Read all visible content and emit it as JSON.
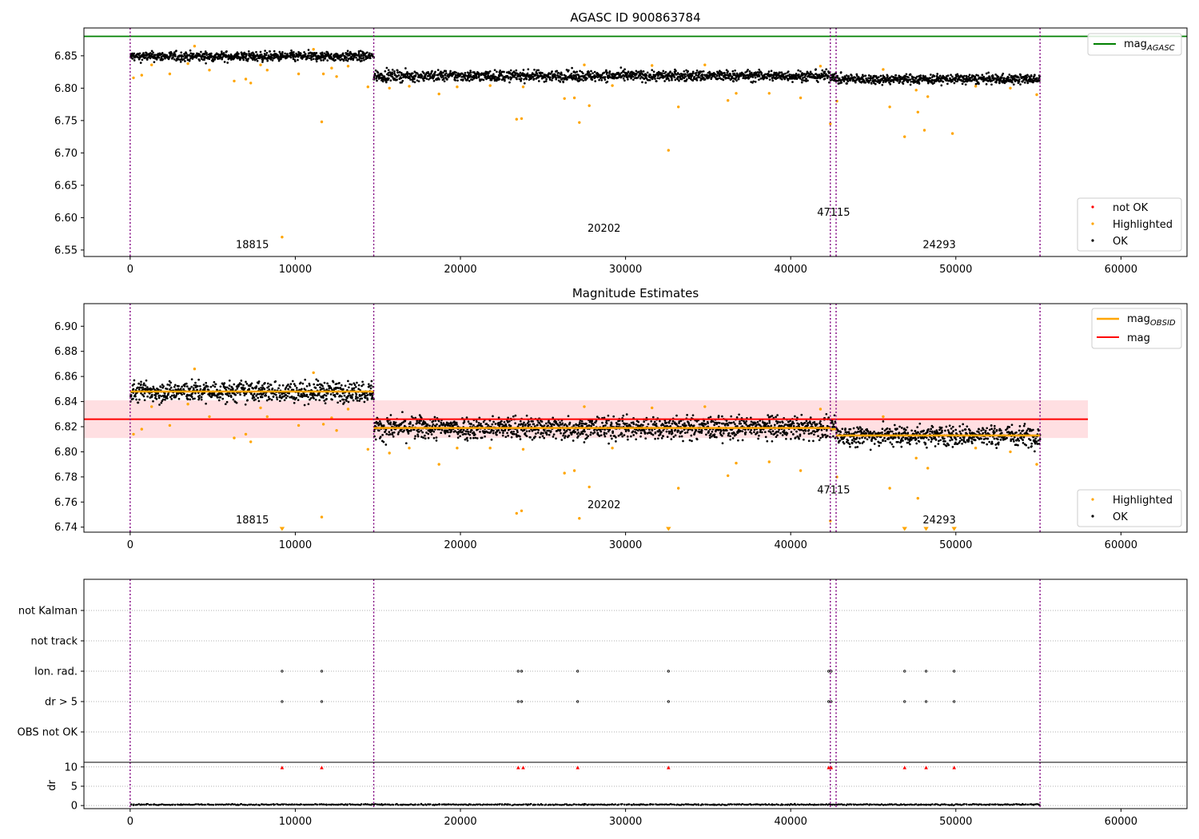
{
  "chart_data": [
    {
      "type": "scatter",
      "title": "AGASC ID 900863784",
      "xlim": [
        -2800,
        64000
      ],
      "ylim": [
        6.54,
        6.893
      ],
      "xticks": [
        0,
        10000,
        20000,
        30000,
        40000,
        50000,
        60000
      ],
      "yticks": [
        6.55,
        6.6,
        6.65,
        6.7,
        6.75,
        6.8,
        6.85
      ],
      "ytick_labels": [
        "6.55",
        "6.60",
        "6.65",
        "6.70",
        "6.75",
        "6.80",
        "6.85"
      ],
      "colors": {
        "ok": "#000000",
        "highlighted": "#ffa500",
        "not_ok": "#ff0000",
        "mag_agasc": "#008000",
        "obsid_boundary": "#800080"
      },
      "reference_line": {
        "name": "mag",
        "subscript": "AGASC",
        "y": 6.88
      },
      "obsid_boundaries": [
        0,
        14750,
        42400,
        42750,
        55100
      ],
      "obsid_labels": [
        {
          "text": "18815",
          "x": 7400,
          "y": 6.553
        },
        {
          "text": "20202",
          "x": 28700,
          "y": 6.578
        },
        {
          "text": "47115",
          "x": 42600,
          "y": 6.603
        },
        {
          "text": "24293",
          "x": 49000,
          "y": 6.553
        }
      ],
      "ok_bands": [
        {
          "x": [
            0,
            14750
          ],
          "center": 6.849,
          "spread": 0.008
        },
        {
          "x": [
            14750,
            42400
          ],
          "center": 6.819,
          "spread": 0.009
        },
        {
          "x": [
            42400,
            42750
          ],
          "center": 6.818,
          "spread": 0.008
        },
        {
          "x": [
            42750,
            55100
          ],
          "center": 6.814,
          "spread": 0.008
        }
      ],
      "highlighted": [
        [
          200,
          6.816
        ],
        [
          700,
          6.82
        ],
        [
          1300,
          6.836
        ],
        [
          2400,
          6.822
        ],
        [
          3500,
          6.838
        ],
        [
          3900,
          6.865
        ],
        [
          4800,
          6.828
        ],
        [
          6300,
          6.811
        ],
        [
          7000,
          6.814
        ],
        [
          7300,
          6.808
        ],
        [
          7900,
          6.836
        ],
        [
          8300,
          6.828
        ],
        [
          9200,
          6.57
        ],
        [
          10200,
          6.822
        ],
        [
          11100,
          6.86
        ],
        [
          11600,
          6.748
        ],
        [
          11700,
          6.822
        ],
        [
          12200,
          6.831
        ],
        [
          12500,
          6.818
        ],
        [
          13200,
          6.834
        ],
        [
          14400,
          6.802
        ],
        [
          15700,
          6.8
        ],
        [
          16900,
          6.803
        ],
        [
          18700,
          6.791
        ],
        [
          19800,
          6.802
        ],
        [
          21800,
          6.804
        ],
        [
          23400,
          6.752
        ],
        [
          23700,
          6.753
        ],
        [
          23800,
          6.802
        ],
        [
          26300,
          6.784
        ],
        [
          26900,
          6.785
        ],
        [
          27200,
          6.747
        ],
        [
          27500,
          6.836
        ],
        [
          27800,
          6.773
        ],
        [
          29200,
          6.804
        ],
        [
          31600,
          6.835
        ],
        [
          32600,
          6.704
        ],
        [
          33200,
          6.771
        ],
        [
          34800,
          6.836
        ],
        [
          36200,
          6.781
        ],
        [
          36700,
          6.792
        ],
        [
          38700,
          6.792
        ],
        [
          40600,
          6.785
        ],
        [
          41800,
          6.834
        ],
        [
          42400,
          6.745
        ],
        [
          42800,
          6.78
        ],
        [
          45600,
          6.829
        ],
        [
          46000,
          6.771
        ],
        [
          46900,
          6.725
        ],
        [
          47600,
          6.797
        ],
        [
          47700,
          6.763
        ],
        [
          48100,
          6.735
        ],
        [
          48300,
          6.787
        ],
        [
          49800,
          6.73
        ],
        [
          51200,
          6.803
        ],
        [
          53300,
          6.8
        ],
        [
          54900,
          6.79
        ]
      ],
      "legend": {
        "placement": "lower-right",
        "entries": [
          {
            "label": "not OK",
            "color": "#ff0000"
          },
          {
            "label": "Highlighted",
            "color": "#ffa500"
          },
          {
            "label": "OK",
            "color": "#000000"
          }
        ]
      },
      "reference_legend": {
        "placement": "upper-right",
        "label": "mag",
        "subscript": "AGASC"
      }
    },
    {
      "type": "scatter",
      "title": "Magnitude Estimates",
      "xlim": [
        -2800,
        64000
      ],
      "ylim": [
        6.736,
        6.918
      ],
      "xticks": [
        0,
        10000,
        20000,
        30000,
        40000,
        50000,
        60000
      ],
      "yticks": [
        6.74,
        6.76,
        6.78,
        6.8,
        6.82,
        6.84,
        6.86,
        6.88,
        6.9
      ],
      "ytick_labels": [
        "6.74",
        "6.76",
        "6.78",
        "6.80",
        "6.82",
        "6.84",
        "6.86",
        "6.88",
        "6.90"
      ],
      "colors": {
        "ok": "#000000",
        "highlighted": "#ffa500",
        "mag_obsid": "#ffa500",
        "mag": "#ff0000",
        "mag_band": "#ffdfe2",
        "obsid_boundary": "#800080"
      },
      "mag": {
        "name": "mag",
        "y": 6.826,
        "band": [
          6.811,
          6.841
        ],
        "x": [
          -2800,
          58000
        ]
      },
      "mag_obsid": {
        "name": "mag",
        "subscript": "OBSID",
        "segments": [
          {
            "x": [
              0,
              14750
            ],
            "y": 6.848
          },
          {
            "x": [
              14750,
              42400
            ],
            "y": 6.819
          },
          {
            "x": [
              42400,
              42750
            ],
            "y": 6.818
          },
          {
            "x": [
              42750,
              55100
            ],
            "y": 6.813
          }
        ]
      },
      "obsid_boundaries": [
        0,
        14750,
        42400,
        42750,
        55100
      ],
      "obsid_labels": [
        {
          "text": "18815",
          "x": 7400,
          "y": 6.743
        },
        {
          "text": "20202",
          "x": 28700,
          "y": 6.755
        },
        {
          "text": "47115",
          "x": 42600,
          "y": 6.767
        },
        {
          "text": "24293",
          "x": 49000,
          "y": 6.743
        }
      ],
      "ok_bands": [
        {
          "x": [
            0,
            14750
          ],
          "center": 6.848,
          "spread": 0.009
        },
        {
          "x": [
            14750,
            42400
          ],
          "center": 6.819,
          "spread": 0.01
        },
        {
          "x": [
            42400,
            42750
          ],
          "center": 6.818,
          "spread": 0.009
        },
        {
          "x": [
            42750,
            55100
          ],
          "center": 6.813,
          "spread": 0.009
        }
      ],
      "highlighted": [
        [
          200,
          6.814
        ],
        [
          700,
          6.818
        ],
        [
          1300,
          6.836
        ],
        [
          2400,
          6.821
        ],
        [
          3500,
          6.838
        ],
        [
          3900,
          6.866
        ],
        [
          4800,
          6.828
        ],
        [
          6300,
          6.811
        ],
        [
          7000,
          6.814
        ],
        [
          7300,
          6.808
        ],
        [
          7900,
          6.835
        ],
        [
          8300,
          6.828
        ],
        [
          10200,
          6.821
        ],
        [
          11100,
          6.863
        ],
        [
          11600,
          6.748
        ],
        [
          11700,
          6.822
        ],
        [
          12200,
          6.827
        ],
        [
          12500,
          6.817
        ],
        [
          13200,
          6.834
        ],
        [
          14400,
          6.802
        ],
        [
          15700,
          6.799
        ],
        [
          16900,
          6.803
        ],
        [
          18700,
          6.79
        ],
        [
          19800,
          6.803
        ],
        [
          21800,
          6.803
        ],
        [
          23400,
          6.751
        ],
        [
          23700,
          6.753
        ],
        [
          23800,
          6.802
        ],
        [
          26300,
          6.783
        ],
        [
          26900,
          6.785
        ],
        [
          27200,
          6.747
        ],
        [
          27500,
          6.836
        ],
        [
          27800,
          6.772
        ],
        [
          29200,
          6.803
        ],
        [
          31600,
          6.835
        ],
        [
          33200,
          6.771
        ],
        [
          34800,
          6.836
        ],
        [
          36200,
          6.781
        ],
        [
          36700,
          6.791
        ],
        [
          38700,
          6.792
        ],
        [
          40600,
          6.785
        ],
        [
          41800,
          6.834
        ],
        [
          42400,
          6.745
        ],
        [
          42800,
          6.78
        ],
        [
          45600,
          6.828
        ],
        [
          46000,
          6.771
        ],
        [
          47600,
          6.795
        ],
        [
          47700,
          6.763
        ],
        [
          48300,
          6.787
        ],
        [
          51200,
          6.803
        ],
        [
          53300,
          6.8
        ],
        [
          54900,
          6.79
        ]
      ],
      "offscale_markers_at_ymin": [
        9200,
        32600,
        46900,
        48200,
        49900
      ],
      "legends": [
        {
          "placement": "upper-right",
          "entries": [
            {
              "label": "mag",
              "subscript": "OBSID",
              "color": "#ffa500"
            },
            {
              "label": "mag",
              "color": "#ff0000"
            }
          ]
        },
        {
          "placement": "lower-right",
          "entries": [
            {
              "label": "Highlighted",
              "color": "#ffa500"
            },
            {
              "label": "OK",
              "color": "#000000"
            }
          ]
        }
      ]
    },
    {
      "type": "scatter",
      "xlim": [
        -2800,
        64000
      ],
      "xticks": [
        0,
        10000,
        20000,
        30000,
        40000,
        50000,
        60000
      ],
      "categories": [
        "not Kalman",
        "not track",
        "Ion. rad.",
        "dr > 5",
        "OBS not OK"
      ],
      "colors": {
        "flag": "#000000",
        "dr_clipped": "#ff0000",
        "dr": "#000000",
        "grid": "#b0b0b0",
        "obsid_boundary": "#800080"
      },
      "flags": {
        "Ion. rad.": [
          9200,
          11600,
          23500,
          23700,
          27100,
          32600,
          42300,
          42450,
          46900,
          48200,
          49900
        ],
        "dr > 5": [
          9200,
          11600,
          23500,
          23700,
          27100,
          32600,
          42300,
          42450,
          46900,
          48200,
          49900
        ]
      },
      "dr_panel": {
        "ylabel": "dr",
        "ylim": [
          -0.8,
          11.2
        ],
        "yticks": [
          0,
          5,
          10
        ],
        "clipped_value": 9.8,
        "clipped_x": [
          9200,
          11600,
          23500,
          23800,
          27100,
          32600,
          42300,
          42450,
          46900,
          48200,
          49900
        ],
        "typical_dr": 0.25
      },
      "obsid_boundaries": [
        0,
        14750,
        42400,
        42750,
        55100
      ]
    }
  ]
}
